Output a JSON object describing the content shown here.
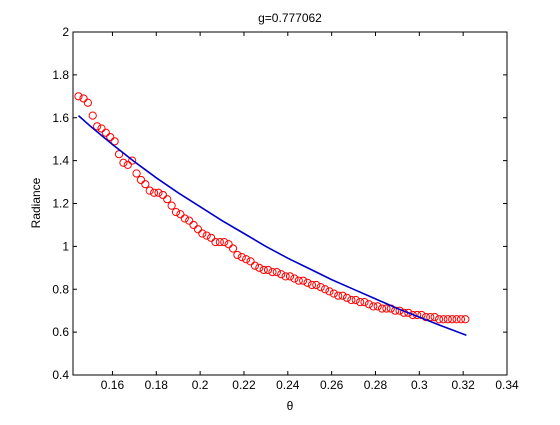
{
  "chart_data": {
    "type": "scatter",
    "title": "g=0.777062",
    "xlabel": "θ",
    "ylabel": "Radiance",
    "xlim": [
      0.142,
      0.34
    ],
    "ylim": [
      0.4,
      2.0
    ],
    "grid": false,
    "box": true,
    "xticks": [
      0.16,
      0.18,
      0.2,
      0.22,
      0.24,
      0.26,
      0.28,
      0.3,
      0.32,
      0.34
    ],
    "xtick_labels": [
      "0.16",
      "0.18",
      "0.2",
      "0.22",
      "0.24",
      "0.26",
      "0.28",
      "0.3",
      "0.32",
      "0.34"
    ],
    "yticks": [
      0.4,
      0.6,
      0.8,
      1.0,
      1.2,
      1.4,
      1.6,
      1.8,
      2.0
    ],
    "ytick_labels": [
      "0.4",
      "0.6",
      "0.8",
      "1",
      "1.2",
      "1.4",
      "1.6",
      "1.8",
      "2"
    ],
    "series": [
      {
        "type": "scatter",
        "marker": "open-circle",
        "color": "#ff0000",
        "x": [
          0.1445,
          0.1468,
          0.1488,
          0.151,
          0.153,
          0.155,
          0.157,
          0.159,
          0.161,
          0.163,
          0.165,
          0.167,
          0.169,
          0.171,
          0.173,
          0.175,
          0.177,
          0.179,
          0.181,
          0.183,
          0.185,
          0.187,
          0.189,
          0.191,
          0.193,
          0.195,
          0.197,
          0.199,
          0.201,
          0.203,
          0.205,
          0.207,
          0.209,
          0.211,
          0.213,
          0.215,
          0.217,
          0.219,
          0.221,
          0.223,
          0.225,
          0.227,
          0.229,
          0.231,
          0.233,
          0.235,
          0.237,
          0.239,
          0.241,
          0.243,
          0.245,
          0.247,
          0.249,
          0.251,
          0.253,
          0.255,
          0.257,
          0.259,
          0.261,
          0.263,
          0.265,
          0.267,
          0.269,
          0.271,
          0.273,
          0.275,
          0.277,
          0.279,
          0.281,
          0.283,
          0.285,
          0.287,
          0.289,
          0.291,
          0.293,
          0.295,
          0.297,
          0.299,
          0.301,
          0.303,
          0.305,
          0.307,
          0.309,
          0.311,
          0.313,
          0.315,
          0.317,
          0.319,
          0.321
        ],
        "y": [
          1.7,
          1.69,
          1.67,
          1.61,
          1.56,
          1.55,
          1.53,
          1.51,
          1.49,
          1.43,
          1.39,
          1.38,
          1.4,
          1.34,
          1.31,
          1.29,
          1.26,
          1.25,
          1.25,
          1.24,
          1.22,
          1.19,
          1.16,
          1.15,
          1.13,
          1.12,
          1.1,
          1.08,
          1.06,
          1.05,
          1.04,
          1.02,
          1.02,
          1.02,
          1.01,
          0.99,
          0.96,
          0.95,
          0.94,
          0.93,
          0.91,
          0.9,
          0.89,
          0.89,
          0.88,
          0.88,
          0.87,
          0.86,
          0.86,
          0.85,
          0.84,
          0.84,
          0.83,
          0.82,
          0.82,
          0.81,
          0.8,
          0.79,
          0.78,
          0.77,
          0.77,
          0.76,
          0.75,
          0.75,
          0.74,
          0.74,
          0.73,
          0.72,
          0.72,
          0.71,
          0.71,
          0.71,
          0.7,
          0.7,
          0.69,
          0.69,
          0.68,
          0.68,
          0.68,
          0.67,
          0.67,
          0.67,
          0.66,
          0.66,
          0.66,
          0.66,
          0.66,
          0.66,
          0.66
        ]
      },
      {
        "type": "line",
        "color": "#0000cc",
        "x": [
          0.1445,
          0.15,
          0.16,
          0.17,
          0.18,
          0.19,
          0.2,
          0.21,
          0.22,
          0.23,
          0.24,
          0.25,
          0.26,
          0.27,
          0.28,
          0.29,
          0.3,
          0.31,
          0.3215
        ],
        "y": [
          1.61,
          1.56,
          1.475,
          1.395,
          1.32,
          1.25,
          1.185,
          1.12,
          1.06,
          1.0,
          0.945,
          0.895,
          0.845,
          0.8,
          0.755,
          0.71,
          0.67,
          0.63,
          0.585
        ]
      }
    ]
  }
}
